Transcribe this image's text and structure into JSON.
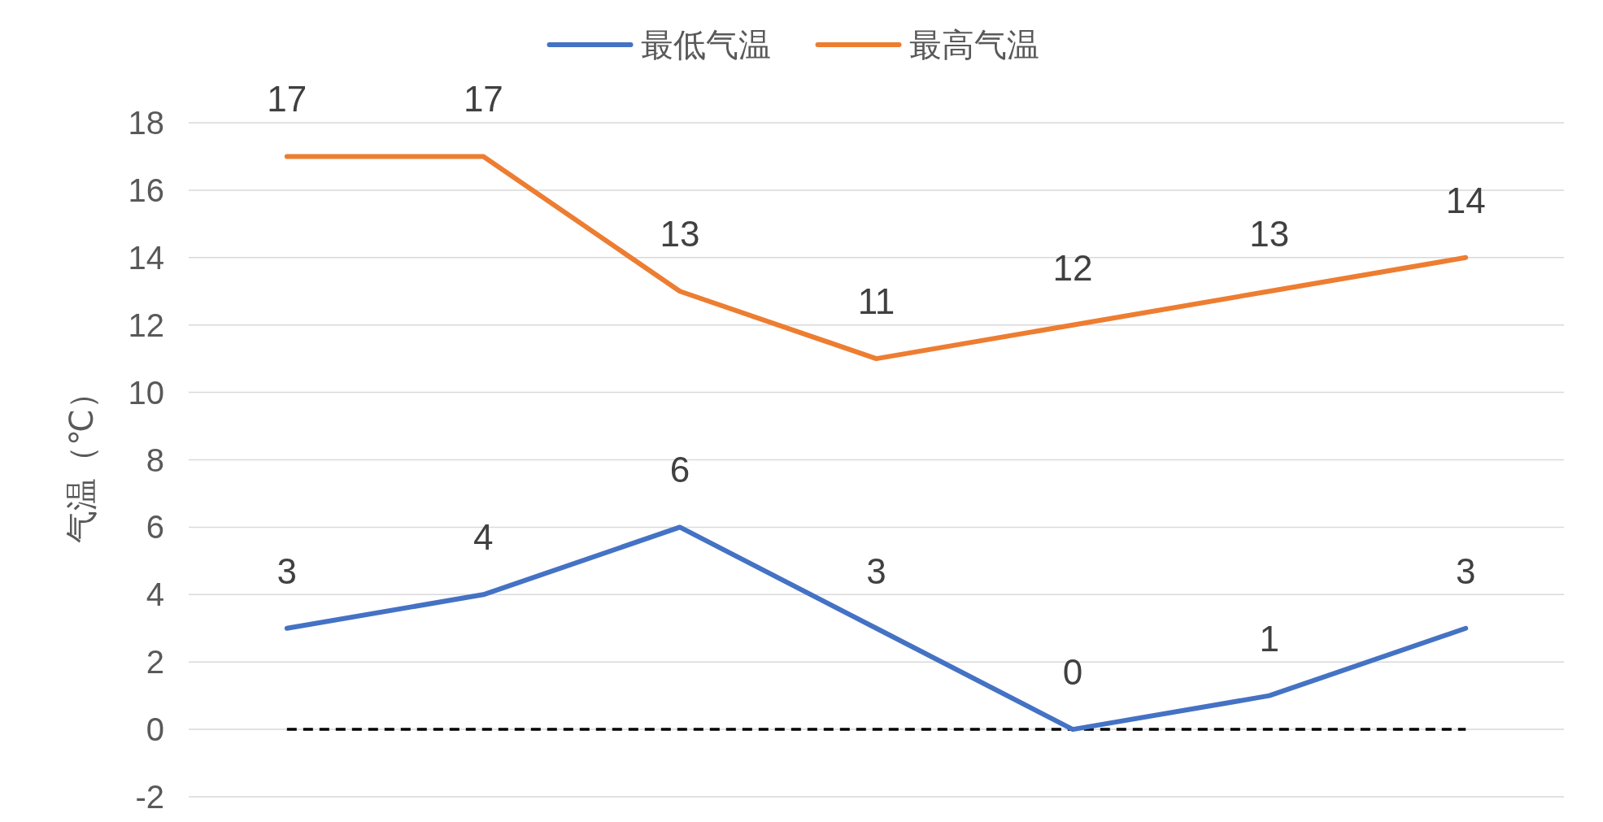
{
  "chart_data": {
    "type": "line",
    "ylabel": "气温（℃）",
    "categories": [
      null,
      null,
      null,
      null,
      null,
      null,
      null
    ],
    "series": [
      {
        "name": "最低气温",
        "color": "#4472c4",
        "values": [
          3,
          4,
          6,
          3,
          0,
          1,
          3
        ]
      },
      {
        "name": "最高气温",
        "color": "#ed7d31",
        "values": [
          17,
          17,
          13,
          11,
          12,
          13,
          14
        ]
      }
    ],
    "ylim": [
      -2,
      18
    ],
    "yticks": [
      -2,
      0,
      2,
      4,
      6,
      8,
      10,
      12,
      14,
      16,
      18
    ],
    "ref_lines": [
      {
        "axis": "y",
        "value": 0,
        "color": "#000000",
        "line_style": "dashed"
      }
    ],
    "grid": "y",
    "legend": "top",
    "data_labels": true,
    "marker": "none",
    "line_style": "solid"
  }
}
